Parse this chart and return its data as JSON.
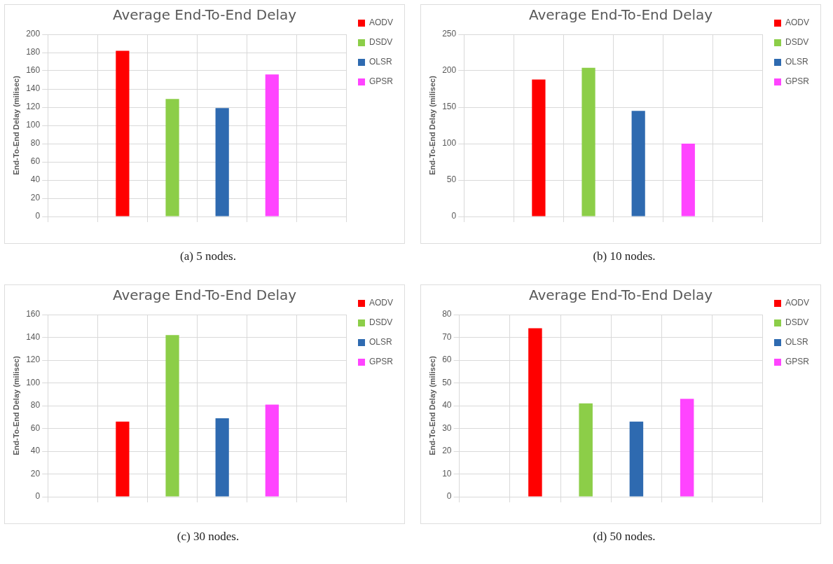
{
  "chart_data": [
    {
      "type": "bar",
      "title": "Average End-To-End Delay",
      "ylabel": "End-To-End Delay (milisec)",
      "categories": [
        null,
        null,
        null,
        null,
        null,
        null
      ],
      "series": [
        {
          "name": "AODV",
          "color": "#ff0000",
          "values": [
            null,
            182,
            null,
            null,
            null,
            null
          ]
        },
        {
          "name": "DSDV",
          "color": "#8cce48",
          "values": [
            null,
            null,
            129,
            null,
            null,
            null
          ]
        },
        {
          "name": "OLSR",
          "color": "#2e6ab0",
          "values": [
            null,
            null,
            null,
            119,
            null,
            null
          ]
        },
        {
          "name": "GPSR",
          "color": "#ff44ff",
          "values": [
            null,
            null,
            null,
            null,
            156,
            null
          ]
        }
      ],
      "ylim": [
        0,
        200
      ],
      "yticks": [
        0,
        20,
        40,
        60,
        80,
        100,
        120,
        140,
        160,
        180,
        200
      ],
      "grid": true,
      "legend": "right",
      "tick_labels": "y",
      "annotations": [
        "(a) 5 nodes."
      ]
    },
    {
      "type": "bar",
      "title": "Average End-To-End Delay",
      "ylabel": "End-To-End Delay (milisec)",
      "categories": [
        null,
        null,
        null,
        null,
        null,
        null
      ],
      "series": [
        {
          "name": "AODV",
          "color": "#ff0000",
          "values": [
            null,
            188,
            null,
            null,
            null,
            null
          ]
        },
        {
          "name": "DSDV",
          "color": "#8cce48",
          "values": [
            null,
            null,
            204,
            null,
            null,
            null
          ]
        },
        {
          "name": "OLSR",
          "color": "#2e6ab0",
          "values": [
            null,
            null,
            null,
            145,
            null,
            null
          ]
        },
        {
          "name": "GPSR",
          "color": "#ff44ff",
          "values": [
            null,
            null,
            null,
            null,
            100,
            null
          ]
        }
      ],
      "ylim": [
        0,
        250
      ],
      "yticks": [
        0,
        50,
        100,
        150,
        200,
        250
      ],
      "grid": true,
      "legend": "right",
      "tick_labels": "y",
      "annotations": [
        "(b) 10 nodes."
      ]
    },
    {
      "type": "bar",
      "title": "Average End-To-End Delay",
      "ylabel": "End-To-End Delay (milisec)",
      "categories": [
        null,
        null,
        null,
        null,
        null,
        null
      ],
      "series": [
        {
          "name": "AODV",
          "color": "#ff0000",
          "values": [
            null,
            66,
            null,
            null,
            null,
            null
          ]
        },
        {
          "name": "DSDV",
          "color": "#8cce48",
          "values": [
            null,
            null,
            142,
            null,
            null,
            null
          ]
        },
        {
          "name": "OLSR",
          "color": "#2e6ab0",
          "values": [
            null,
            null,
            null,
            69,
            null,
            null
          ]
        },
        {
          "name": "GPSR",
          "color": "#ff44ff",
          "values": [
            null,
            null,
            null,
            null,
            81,
            null
          ]
        }
      ],
      "ylim": [
        0,
        160
      ],
      "yticks": [
        0,
        20,
        40,
        60,
        80,
        100,
        120,
        140,
        160
      ],
      "grid": true,
      "legend": "right",
      "tick_labels": "y",
      "annotations": [
        "(c) 30 nodes."
      ]
    },
    {
      "type": "bar",
      "title": "Average End-To-End Delay",
      "ylabel": "End-To-End Delay (milisec)",
      "categories": [
        null,
        null,
        null,
        null,
        null,
        null
      ],
      "series": [
        {
          "name": "AODV",
          "color": "#ff0000",
          "values": [
            null,
            74,
            null,
            null,
            null,
            null
          ]
        },
        {
          "name": "DSDV",
          "color": "#8cce48",
          "values": [
            null,
            null,
            41,
            null,
            null,
            null
          ]
        },
        {
          "name": "OLSR",
          "color": "#2e6ab0",
          "values": [
            null,
            null,
            null,
            33,
            null,
            null
          ]
        },
        {
          "name": "GPSR",
          "color": "#ff44ff",
          "values": [
            null,
            null,
            null,
            null,
            43,
            null
          ]
        }
      ],
      "ylim": [
        0,
        80
      ],
      "yticks": [
        0,
        10,
        20,
        30,
        40,
        50,
        60,
        70,
        80
      ],
      "grid": true,
      "legend": "right",
      "tick_labels": "y",
      "annotations": [
        "(d) 50 nodes."
      ]
    }
  ]
}
